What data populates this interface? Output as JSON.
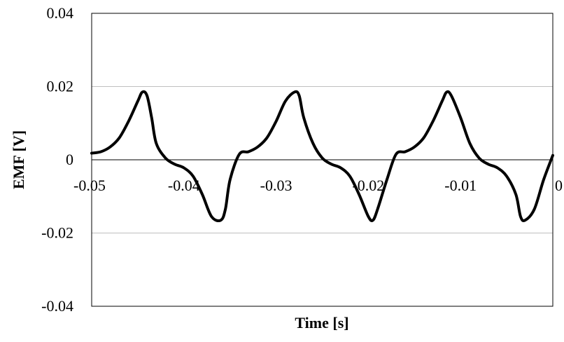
{
  "chart_data": {
    "type": "line",
    "xlabel": "Time [s]",
    "ylabel": "EMF [V]",
    "xlim": [
      -0.05,
      0
    ],
    "ylim": [
      -0.04,
      0.04
    ],
    "x_ticks": [
      -0.05,
      -0.04,
      -0.03,
      -0.02,
      -0.01,
      0
    ],
    "x_tick_labels": [
      "-0.05",
      "-0.04",
      "-0.03",
      "-0.02",
      "-0.01",
      "0"
    ],
    "y_ticks": [
      -0.04,
      -0.02,
      0,
      0.02,
      0.04
    ],
    "y_tick_labels": [
      "-0.04",
      "-0.02",
      "0",
      "0.02",
      "0.04"
    ],
    "grid": "horizontal",
    "legend": "none",
    "colors": {
      "line": "#000000",
      "grid": "#bfbfbf",
      "frame": "#000000"
    },
    "series": [
      {
        "x": [
          -0.05,
          -0.049,
          -0.048,
          -0.047,
          -0.046,
          -0.045,
          -0.0445,
          -0.044,
          -0.0435,
          -0.043,
          -0.042,
          -0.041,
          -0.04,
          -0.039,
          -0.038,
          -0.037,
          -0.036,
          -0.0355,
          -0.035,
          -0.034,
          -0.033,
          -0.032,
          -0.031,
          -0.03,
          -0.029,
          -0.028,
          -0.0275,
          -0.027,
          -0.026,
          -0.025,
          -0.024,
          -0.023,
          -0.022,
          -0.021,
          -0.02,
          -0.0195,
          -0.019,
          -0.018,
          -0.017,
          -0.016,
          -0.015,
          -0.014,
          -0.013,
          -0.012,
          -0.0115,
          -0.011,
          -0.01,
          -0.009,
          -0.008,
          -0.007,
          -0.006,
          -0.005,
          -0.004,
          -0.0035,
          -0.003,
          -0.002,
          -0.001,
          0.0
        ],
        "y": [
          0.0018,
          0.0022,
          0.0035,
          0.006,
          0.0105,
          0.016,
          0.0185,
          0.0175,
          0.0115,
          0.0045,
          0.0005,
          -0.0012,
          -0.0022,
          -0.0045,
          -0.0095,
          -0.0155,
          -0.0165,
          -0.0135,
          -0.0055,
          0.0015,
          0.0022,
          0.0035,
          0.006,
          0.0105,
          0.016,
          0.0185,
          0.0175,
          0.0115,
          0.0045,
          0.0005,
          -0.0012,
          -0.0022,
          -0.0045,
          -0.0095,
          -0.0155,
          -0.0165,
          -0.0135,
          -0.0055,
          0.0015,
          0.0022,
          0.0035,
          0.006,
          0.0105,
          0.016,
          0.0185,
          0.0175,
          0.0115,
          0.0045,
          0.0005,
          -0.0012,
          -0.0022,
          -0.0045,
          -0.0095,
          -0.0155,
          -0.0165,
          -0.0135,
          -0.0055,
          0.0012
        ]
      }
    ]
  }
}
